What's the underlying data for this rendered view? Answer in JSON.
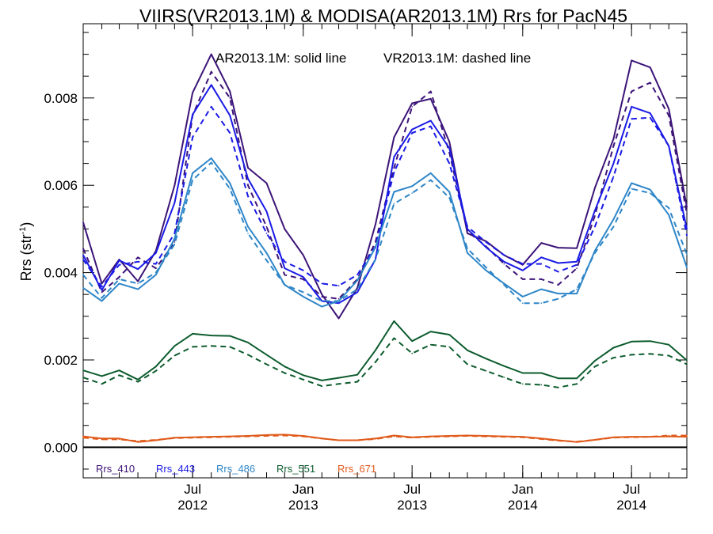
{
  "chart_data": {
    "type": "line",
    "title": "VIIRS(VR2013.1M) & MODISA(AR2013.1M)  Rrs for PacN45",
    "annotation_left": "AR2013.1M: solid line",
    "annotation_right": "VR2013.1M: dashed line",
    "ylabel_main": "Rrs (str",
    "ylabel_sup": "-1",
    "ylabel_end": ")",
    "ylim": [
      -0.0007,
      0.0097
    ],
    "xlim": [
      "2012-01-01",
      "2014-10-01"
    ],
    "y_ticks": [
      {
        "value": 0.0,
        "label": "0.000"
      },
      {
        "value": 0.002,
        "label": "0.002"
      },
      {
        "value": 0.004,
        "label": "0.004"
      },
      {
        "value": 0.006,
        "label": "0.006"
      },
      {
        "value": 0.008,
        "label": "0.008"
      }
    ],
    "x_ticks": [
      {
        "date": "2012-07-01",
        "line1": "Jul",
        "line2": "2012"
      },
      {
        "date": "2013-01-01",
        "line1": "Jan",
        "line2": "2013"
      },
      {
        "date": "2013-07-01",
        "line1": "Jul",
        "line2": "2013"
      },
      {
        "date": "2014-01-01",
        "line1": "Jan",
        "line2": "2014"
      },
      {
        "date": "2014-07-01",
        "line1": "Jul",
        "line2": "2014"
      }
    ],
    "x": [
      "2012-01-01",
      "2012-02-01",
      "2012-03-01",
      "2012-04-01",
      "2012-05-01",
      "2012-06-01",
      "2012-07-01",
      "2012-08-01",
      "2012-09-01",
      "2012-10-01",
      "2012-11-01",
      "2012-12-01",
      "2013-01-01",
      "2013-02-01",
      "2013-03-01",
      "2013-04-01",
      "2013-05-01",
      "2013-06-01",
      "2013-07-01",
      "2013-08-01",
      "2013-09-01",
      "2013-10-01",
      "2013-11-01",
      "2013-12-01",
      "2014-01-01",
      "2014-02-01",
      "2014-03-01",
      "2014-04-01",
      "2014-05-01",
      "2014-06-01",
      "2014-07-01",
      "2014-08-01",
      "2014-09-01",
      "2014-10-01"
    ],
    "series": [
      {
        "name": "Rrs_410",
        "sensor": "AR2013.1M",
        "style": "solid",
        "color": "#3c1478",
        "values": [
          0.00515,
          0.00375,
          0.0043,
          0.0038,
          0.0045,
          0.006,
          0.00812,
          0.009,
          0.00815,
          0.0064,
          0.00605,
          0.005,
          0.0044,
          0.0035,
          0.00295,
          0.00365,
          0.0051,
          0.0071,
          0.00788,
          0.00798,
          0.007,
          0.0049,
          0.00472,
          0.0044,
          0.00418,
          0.00468,
          0.00457,
          0.00456,
          0.00594,
          0.00706,
          0.00886,
          0.0087,
          0.00775,
          0.0055
        ]
      },
      {
        "name": "Rrs_410",
        "sensor": "VR2013.1M",
        "style": "dashed",
        "color": "#3c1478",
        "values": [
          0.00455,
          0.00355,
          0.0039,
          0.00435,
          0.0041,
          0.0047,
          0.0076,
          0.0086,
          0.008,
          0.006,
          0.00505,
          0.00395,
          0.00385,
          0.00345,
          0.0034,
          0.00385,
          0.0047,
          0.0064,
          0.0078,
          0.00815,
          0.00675,
          0.00495,
          0.0046,
          0.0042,
          0.00385,
          0.00385,
          0.00372,
          0.0041,
          0.0053,
          0.0069,
          0.00815,
          0.00835,
          0.0076,
          0.00535
        ]
      },
      {
        "name": "Rrs_443",
        "sensor": "AR2013.1M",
        "style": "solid",
        "color": "#1a1ae6",
        "values": [
          0.0044,
          0.0036,
          0.00428,
          0.00408,
          0.00445,
          0.0056,
          0.00762,
          0.0083,
          0.0076,
          0.00615,
          0.0054,
          0.0041,
          0.0039,
          0.00335,
          0.0033,
          0.00355,
          0.0043,
          0.00665,
          0.00728,
          0.00748,
          0.00685,
          0.005,
          0.00458,
          0.00425,
          0.00405,
          0.00435,
          0.00422,
          0.00425,
          0.00542,
          0.0065,
          0.0078,
          0.00765,
          0.0069,
          0.005
        ]
      },
      {
        "name": "Rrs_443",
        "sensor": "VR2013.1M",
        "style": "dashed",
        "color": "#1a1ae6",
        "values": [
          0.0043,
          0.00368,
          0.00418,
          0.00425,
          0.0042,
          0.0049,
          0.0071,
          0.0078,
          0.0072,
          0.00575,
          0.0049,
          0.00425,
          0.00405,
          0.00375,
          0.0037,
          0.00395,
          0.0046,
          0.0063,
          0.0072,
          0.00735,
          0.0065,
          0.00505,
          0.0047,
          0.0044,
          0.0042,
          0.0042,
          0.00402,
          0.00418,
          0.00505,
          0.0062,
          0.00752,
          0.00755,
          0.0069,
          0.00485
        ]
      },
      {
        "name": "Rrs_486",
        "sensor": "AR2013.1M",
        "style": "solid",
        "color": "#2e86c8",
        "values": [
          0.00365,
          0.00335,
          0.00375,
          0.00362,
          0.00395,
          0.00478,
          0.00628,
          0.00662,
          0.00605,
          0.00505,
          0.00445,
          0.00372,
          0.00345,
          0.00322,
          0.00335,
          0.00382,
          0.00458,
          0.00585,
          0.00598,
          0.00628,
          0.00585,
          0.00445,
          0.00405,
          0.00375,
          0.00345,
          0.00362,
          0.00352,
          0.00352,
          0.0045,
          0.00522,
          0.00605,
          0.0059,
          0.00532,
          0.00412
        ]
      },
      {
        "name": "Rrs_486",
        "sensor": "VR2013.1M",
        "style": "dashed",
        "color": "#2e86c8",
        "values": [
          0.00395,
          0.00342,
          0.00385,
          0.00375,
          0.004,
          0.00465,
          0.00612,
          0.00652,
          0.00592,
          0.0049,
          0.00428,
          0.00372,
          0.00355,
          0.00335,
          0.00335,
          0.00362,
          0.0043,
          0.00558,
          0.00582,
          0.00612,
          0.00572,
          0.00455,
          0.00412,
          0.00372,
          0.0033,
          0.0033,
          0.0034,
          0.00362,
          0.00445,
          0.00505,
          0.00592,
          0.00582,
          0.00548,
          0.00442
        ]
      },
      {
        "name": "Rrs_551",
        "sensor": "AR2013.1M",
        "style": "solid",
        "color": "#0d5c2e",
        "values": [
          0.00176,
          0.00163,
          0.00176,
          0.00155,
          0.00185,
          0.00232,
          0.0026,
          0.00256,
          0.00255,
          0.0024,
          0.00212,
          0.00185,
          0.00165,
          0.00153,
          0.00159,
          0.00166,
          0.00222,
          0.00289,
          0.00243,
          0.00265,
          0.00258,
          0.00222,
          0.00203,
          0.00186,
          0.0017,
          0.0017,
          0.00158,
          0.00158,
          0.00198,
          0.00228,
          0.00242,
          0.00243,
          0.00235,
          0.00199
        ]
      },
      {
        "name": "Rrs_551",
        "sensor": "VR2013.1M",
        "style": "dashed",
        "color": "#0d5c2e",
        "values": [
          0.0016,
          0.00145,
          0.00165,
          0.0015,
          0.00175,
          0.0021,
          0.0023,
          0.00232,
          0.0023,
          0.00212,
          0.0019,
          0.0017,
          0.00155,
          0.0014,
          0.00145,
          0.0015,
          0.00195,
          0.0025,
          0.00215,
          0.00235,
          0.0023,
          0.0019,
          0.00175,
          0.0016,
          0.00145,
          0.00143,
          0.00137,
          0.00145,
          0.00185,
          0.00205,
          0.00212,
          0.00214,
          0.0021,
          0.0019
        ]
      },
      {
        "name": "Rrs_671",
        "sensor": "AR2013.1M",
        "style": "solid",
        "color": "#e05a1a",
        "values": [
          0.00025,
          0.0002,
          0.0002,
          0.00012,
          0.00016,
          0.00022,
          0.00023,
          0.00024,
          0.00025,
          0.00026,
          0.00028,
          0.00029,
          0.00026,
          0.0002,
          0.00016,
          0.00016,
          0.0002,
          0.00027,
          0.00023,
          0.00025,
          0.00026,
          0.00027,
          0.00026,
          0.00025,
          0.00024,
          0.0002,
          0.00016,
          0.00012,
          0.00017,
          0.00023,
          0.00024,
          0.00024,
          0.00025,
          0.00024
        ]
      },
      {
        "name": "Rrs_671",
        "sensor": "VR2013.1M",
        "style": "dashed",
        "color": "#e05a1a",
        "values": [
          0.00022,
          0.00018,
          0.00018,
          0.00014,
          0.00017,
          0.00021,
          0.00022,
          0.00023,
          0.00024,
          0.00025,
          0.00026,
          0.00027,
          0.00025,
          0.0002,
          0.00016,
          0.00016,
          0.00019,
          0.00025,
          0.00022,
          0.00024,
          0.00025,
          0.00026,
          0.00025,
          0.00024,
          0.00023,
          0.00019,
          0.00015,
          0.00013,
          0.00017,
          0.00022,
          0.00023,
          0.00024,
          0.00027,
          0.00027
        ]
      }
    ],
    "legend": [
      {
        "label": "Rrs_410",
        "color": "#3c1478"
      },
      {
        "label": "Rrs_443",
        "color": "#1a1ae6"
      },
      {
        "label": "Rrs_486",
        "color": "#2e86c8"
      },
      {
        "label": "Rrs_551",
        "color": "#0d5c2e"
      },
      {
        "label": "Rrs_671",
        "color": "#e05a1a"
      }
    ],
    "legend_placement": "bottom-left",
    "grid": false
  }
}
